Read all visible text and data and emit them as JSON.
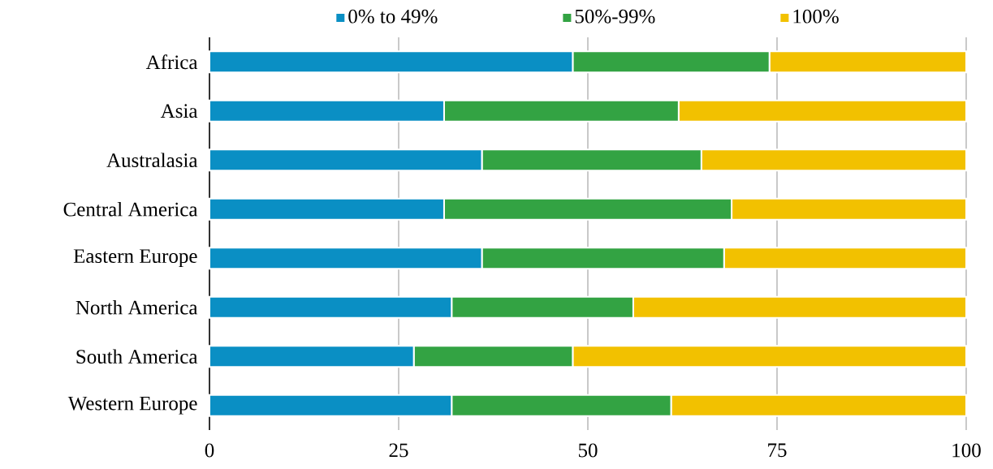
{
  "chart_data": {
    "type": "bar",
    "orientation": "horizontal",
    "stacked": true,
    "categories": [
      "Africa",
      "Asia",
      "Australasia",
      "Central America",
      "Eastern Europe",
      "North America",
      "South America",
      "Western Europe"
    ],
    "series": [
      {
        "name": "0% to 49%",
        "color": "#0a8fc4",
        "values": [
          48,
          31,
          36,
          31,
          36,
          32,
          27,
          32
        ]
      },
      {
        "name": "50%-99%",
        "color": "#33a343",
        "values": [
          26,
          31,
          29,
          38,
          32,
          24,
          21,
          29
        ]
      },
      {
        "name": "100%",
        "color": "#f2c100",
        "values": [
          26,
          38,
          35,
          31,
          32,
          44,
          52,
          39
        ]
      }
    ],
    "xlim": [
      0,
      100
    ],
    "xticks": [
      0,
      25,
      50,
      75,
      100
    ],
    "grid": "x",
    "legend": "top"
  }
}
